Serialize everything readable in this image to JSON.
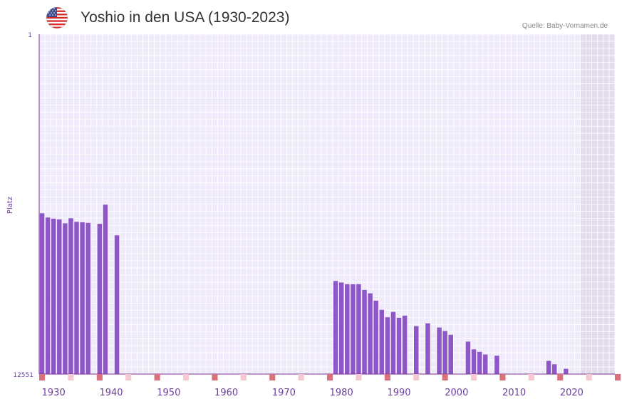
{
  "header": {
    "title": "Yoshio in den USA (1930-2023)",
    "source": "Quelle: Baby-Vornamen.de",
    "flag_icon": "usa-flag-icon"
  },
  "colors": {
    "bar": "#8e57c8",
    "background": "#f0ebfa",
    "grid": "#ffffff",
    "future_shade": "#e2dced",
    "axis": "#7a3090",
    "marker_decade": "#d9707a",
    "marker_half": "#f3c9d2",
    "tick_text": "#6b3fa0"
  },
  "chart_data": {
    "type": "bar",
    "title": "Yoshio in den USA (1930-2023)",
    "xlabel": "",
    "ylabel": "Platz",
    "y_inverted": true,
    "ylim": [
      1,
      12551
    ],
    "y_ticks": [
      "1",
      "12551"
    ],
    "xlim": [
      1928,
      2028
    ],
    "x_ticks": [
      1930,
      1940,
      1950,
      1960,
      1970,
      1980,
      1990,
      2000,
      2010,
      2020
    ],
    "shaded_from_year": 2022,
    "years": [
      1928,
      1929,
      1930,
      1931,
      1932,
      1933,
      1934,
      1935,
      1936,
      1938,
      1939,
      1941,
      1979,
      1980,
      1981,
      1982,
      1983,
      1984,
      1985,
      1986,
      1987,
      1988,
      1989,
      1990,
      1991,
      1993,
      1995,
      1997,
      1998,
      1999,
      2002,
      2003,
      2004,
      2005,
      2007,
      2016,
      2017,
      2019
    ],
    "ranks": [
      6612,
      6770,
      6811,
      6838,
      6982,
      6797,
      6930,
      6946,
      6967,
      7002,
      6295,
      7427,
      9113,
      9168,
      9232,
      9236,
      9232,
      9443,
      9568,
      9841,
      10180,
      10451,
      10254,
      10471,
      10394,
      10780,
      10678,
      10830,
      10960,
      11100,
      11352,
      11638,
      11730,
      11828,
      11873,
      12062,
      12190,
      12357
    ]
  }
}
